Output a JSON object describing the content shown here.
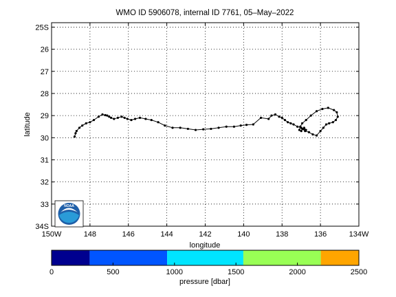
{
  "chart_data": {
    "type": "line",
    "title": "WMO ID 5906078, internal ID 7761, 05–May–2022",
    "xlabel": "longitude",
    "ylabel": "latitude",
    "xlim": [
      -150,
      -134
    ],
    "ylim": [
      -34,
      -24.8
    ],
    "x_ticks": [
      -150,
      -148,
      -146,
      -144,
      -142,
      -140,
      -138,
      -136,
      -134
    ],
    "x_tick_labels": [
      "150W",
      "148",
      "146",
      "144",
      "142",
      "140",
      "138",
      "136",
      "134W"
    ],
    "y_ticks": [
      -25,
      -26,
      -27,
      -28,
      -29,
      -30,
      -31,
      -32,
      -33,
      -34
    ],
    "y_tick_labels": [
      "25S",
      "26",
      "27",
      "28",
      "29",
      "30",
      "31",
      "32",
      "33",
      "34S"
    ],
    "grid": true,
    "line_color": "#000000",
    "series": [
      {
        "x": [
          -148.8,
          -148.75,
          -148.7,
          -148.55,
          -148.4,
          -148.2,
          -148.0,
          -147.8,
          -147.55,
          -147.35,
          -147.2,
          -147.1,
          -147.0,
          -146.9,
          -146.75,
          -146.55,
          -146.35,
          -146.2,
          -146.05,
          -145.85,
          -145.65,
          -145.4,
          -145.1,
          -144.8,
          -144.45,
          -144.1,
          -143.7,
          -143.3,
          -142.9,
          -142.5,
          -142.1,
          -141.7,
          -141.3,
          -140.9,
          -140.5,
          -140.15,
          -139.85,
          -139.5,
          -139.1,
          -138.7,
          -138.55,
          -138.35,
          -138.15,
          -138.0,
          -137.85,
          -137.7,
          -137.55,
          -137.4,
          -137.2,
          -137.0,
          -136.85,
          -136.75,
          -136.85,
          -136.95,
          -136.8,
          -136.6,
          -136.4,
          -136.2,
          -136.0,
          -135.85,
          -135.7,
          -135.55,
          -135.35,
          -135.2,
          -135.1,
          -135.15,
          -135.3,
          -135.6,
          -135.9,
          -136.2,
          -136.5,
          -136.75,
          -136.95,
          -137.05,
          -137.1,
          -137.0,
          -136.9
        ],
        "y": [
          -29.95,
          -29.8,
          -29.7,
          -29.55,
          -29.45,
          -29.35,
          -29.3,
          -29.2,
          -29.05,
          -28.95,
          -28.98,
          -29.0,
          -29.05,
          -29.1,
          -29.15,
          -29.1,
          -29.05,
          -29.1,
          -29.15,
          -29.2,
          -29.15,
          -29.1,
          -29.15,
          -29.2,
          -29.3,
          -29.45,
          -29.55,
          -29.55,
          -29.6,
          -29.65,
          -29.62,
          -29.6,
          -29.55,
          -29.5,
          -29.5,
          -29.45,
          -29.42,
          -29.4,
          -29.1,
          -29.15,
          -29.0,
          -28.95,
          -29.05,
          -29.1,
          -29.2,
          -29.3,
          -29.35,
          -29.4,
          -29.5,
          -29.55,
          -29.6,
          -29.65,
          -29.55,
          -29.6,
          -29.7,
          -29.75,
          -29.85,
          -29.9,
          -29.7,
          -29.55,
          -29.4,
          -29.35,
          -29.3,
          -29.2,
          -29.05,
          -28.85,
          -28.75,
          -28.65,
          -28.7,
          -28.8,
          -29.0,
          -29.2,
          -29.35,
          -29.5,
          -29.65,
          -29.7,
          -29.6
        ]
      }
    ],
    "colorbar": {
      "label": "pressure [dbar]",
      "min": 0,
      "max": 2500,
      "ticks": [
        0,
        500,
        1000,
        1500,
        2000,
        2500
      ],
      "bands": [
        {
          "from": 0,
          "to": 310,
          "color": "#00008f"
        },
        {
          "from": 310,
          "to": 940,
          "color": "#0055ff"
        },
        {
          "from": 940,
          "to": 1560,
          "color": "#00e5ff"
        },
        {
          "from": 1560,
          "to": 2190,
          "color": "#99ff55"
        },
        {
          "from": 2190,
          "to": 2500,
          "color": "#ffa500"
        }
      ]
    }
  },
  "logo": {
    "text": "NOAA",
    "colors": {
      "ring": "#1f5fa8",
      "band": "#2a9bd8",
      "bird": "#ffffff"
    }
  }
}
